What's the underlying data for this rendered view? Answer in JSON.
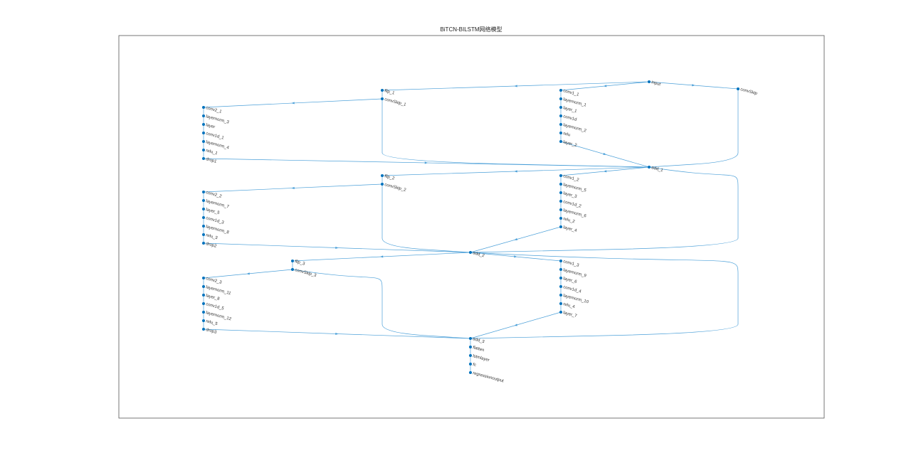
{
  "title": "BiTCN-BILSTM网络模型",
  "nodes": [
    {
      "label": "input"
    },
    {
      "label": "convSkip"
    },
    {
      "label": "flip_1"
    },
    {
      "label": "convSkip_1"
    },
    {
      "label": "conv1_1"
    },
    {
      "label": "layernorm_1"
    },
    {
      "label": "layer_1"
    },
    {
      "label": "conv1d"
    },
    {
      "label": "layernorm_2"
    },
    {
      "label": "relu"
    },
    {
      "label": "layer_2"
    },
    {
      "label": "conv2_1"
    },
    {
      "label": "layernorm_3"
    },
    {
      "label": "layer"
    },
    {
      "label": "conv1d_1"
    },
    {
      "label": "layernorm_4"
    },
    {
      "label": "relu_1"
    },
    {
      "label": "drop1"
    },
    {
      "label": "add_1"
    },
    {
      "label": "flip_2"
    },
    {
      "label": "convSkip_2"
    },
    {
      "label": "conv1_2"
    },
    {
      "label": "layernorm_5"
    },
    {
      "label": "layer_3"
    },
    {
      "label": "conv1d_2"
    },
    {
      "label": "layernorm_6"
    },
    {
      "label": "relu_2"
    },
    {
      "label": "layer_4"
    },
    {
      "label": "conv2_2"
    },
    {
      "label": "layernorm_7"
    },
    {
      "label": "layer_5"
    },
    {
      "label": "conv1d_3"
    },
    {
      "label": "layernorm_8"
    },
    {
      "label": "relu_3"
    },
    {
      "label": "drop2"
    },
    {
      "label": "add_2"
    },
    {
      "label": "flip_3"
    },
    {
      "label": "convSkip_3"
    },
    {
      "label": "conv1_3"
    },
    {
      "label": "layernorm_9"
    },
    {
      "label": "layer_6"
    },
    {
      "label": "conv1d_4"
    },
    {
      "label": "layernorm_10"
    },
    {
      "label": "relu_4"
    },
    {
      "label": "layer_7"
    },
    {
      "label": "conv2_3"
    },
    {
      "label": "layernorm_11"
    },
    {
      "label": "layer_8"
    },
    {
      "label": "conv1d_5"
    },
    {
      "label": "layernorm_12"
    },
    {
      "label": "relu_5"
    },
    {
      "label": "drop3"
    },
    {
      "label": "add_3"
    },
    {
      "label": "flatten"
    },
    {
      "label": "lstmlayer"
    },
    {
      "label": "fc"
    },
    {
      "label": "regressionoutput"
    }
  ]
}
